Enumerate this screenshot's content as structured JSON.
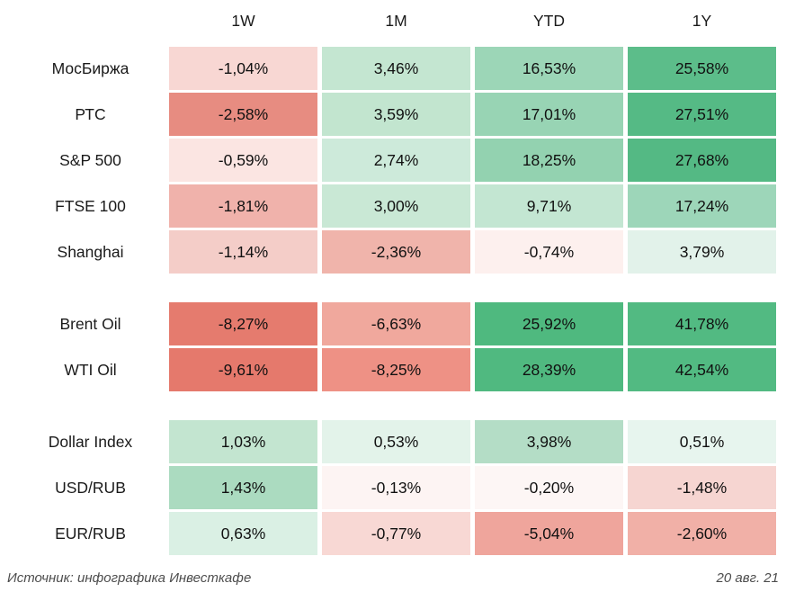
{
  "columns": [
    "1W",
    "1M",
    "YTD",
    "1Y"
  ],
  "table": {
    "groups": [
      {
        "rows": [
          {
            "label": "МосБиржа",
            "cells": [
              {
                "value": "-1,04%",
                "color": "#f8d7d3"
              },
              {
                "value": "3,46%",
                "color": "#c4e6d1"
              },
              {
                "value": "16,53%",
                "color": "#9cd6b7"
              },
              {
                "value": "25,58%",
                "color": "#5cbd8a"
              }
            ]
          },
          {
            "label": "РТС",
            "cells": [
              {
                "value": "-2,58%",
                "color": "#e78c81"
              },
              {
                "value": "3,59%",
                "color": "#c2e5cf"
              },
              {
                "value": "17,01%",
                "color": "#98d4b4"
              },
              {
                "value": "27,51%",
                "color": "#55ba85"
              }
            ]
          },
          {
            "label": "S&P 500",
            "cells": [
              {
                "value": "-0,59%",
                "color": "#fbe5e2"
              },
              {
                "value": "2,74%",
                "color": "#cdeada"
              },
              {
                "value": "18,25%",
                "color": "#93d2b0"
              },
              {
                "value": "27,68%",
                "color": "#54b984"
              }
            ]
          },
          {
            "label": "FTSE 100",
            "cells": [
              {
                "value": "-1,81%",
                "color": "#f0b2ab"
              },
              {
                "value": "3,00%",
                "color": "#c9e8d5"
              },
              {
                "value": "9,71%",
                "color": "#c3e6d2"
              },
              {
                "value": "17,24%",
                "color": "#9dd6b9"
              }
            ]
          },
          {
            "label": "Shanghai",
            "cells": [
              {
                "value": "-1,14%",
                "color": "#f4cdc8"
              },
              {
                "value": "-2,36%",
                "color": "#f0b4ab"
              },
              {
                "value": "-0,74%",
                "color": "#fdf0ee"
              },
              {
                "value": "3,79%",
                "color": "#e2f2ea"
              }
            ]
          }
        ]
      },
      {
        "rows": [
          {
            "label": "Brent Oil",
            "cells": [
              {
                "value": "-8,27%",
                "color": "#e57b6e"
              },
              {
                "value": "-6,63%",
                "color": "#f0a89d"
              },
              {
                "value": "25,92%",
                "color": "#4fb97f"
              },
              {
                "value": "41,78%",
                "color": "#52ba82"
              }
            ]
          },
          {
            "label": "WTI Oil",
            "cells": [
              {
                "value": "-9,61%",
                "color": "#e5796c"
              },
              {
                "value": "-8,25%",
                "color": "#ee9185"
              },
              {
                "value": "28,39%",
                "color": "#50b980"
              },
              {
                "value": "42,54%",
                "color": "#52ba82"
              }
            ]
          }
        ]
      },
      {
        "rows": [
          {
            "label": "Dollar Index",
            "cells": [
              {
                "value": "1,03%",
                "color": "#c3e5d0"
              },
              {
                "value": "0,53%",
                "color": "#e3f3ea"
              },
              {
                "value": "3,98%",
                "color": "#b4ddc6"
              },
              {
                "value": "0,51%",
                "color": "#e7f5ee"
              }
            ]
          },
          {
            "label": "USD/RUB",
            "cells": [
              {
                "value": "1,43%",
                "color": "#abdbc0"
              },
              {
                "value": "-0,13%",
                "color": "#fdf4f3"
              },
              {
                "value": "-0,20%",
                "color": "#fdf6f5"
              },
              {
                "value": "-1,48%",
                "color": "#f6d5d1"
              }
            ]
          },
          {
            "label": "EUR/RUB",
            "cells": [
              {
                "value": "0,63%",
                "color": "#daf0e4"
              },
              {
                "value": "-0,77%",
                "color": "#f8d8d4"
              },
              {
                "value": "-5,04%",
                "color": "#efa59c"
              },
              {
                "value": "-2,60%",
                "color": "#f1b0a7"
              }
            ]
          }
        ]
      }
    ]
  },
  "footer": {
    "source": "Источник: инфографика Инвесткафе",
    "date": "20 авг. 21"
  },
  "chart_data": {
    "type": "heatmap",
    "columns": [
      "1W",
      "1M",
      "YTD",
      "1Y"
    ],
    "rows": [
      "МосБиржа",
      "РТС",
      "S&P 500",
      "FTSE 100",
      "Shanghai",
      "Brent Oil",
      "WTI Oil",
      "Dollar Index",
      "USD/RUB",
      "EUR/RUB"
    ],
    "row_groups": [
      [
        "МосБиржа",
        "РТС",
        "S&P 500",
        "FTSE 100",
        "Shanghai"
      ],
      [
        "Brent Oil",
        "WTI Oil"
      ],
      [
        "Dollar Index",
        "USD/RUB",
        "EUR/RUB"
      ]
    ],
    "values_percent": [
      [
        -1.04,
        3.46,
        16.53,
        25.58
      ],
      [
        -2.58,
        3.59,
        17.01,
        27.51
      ],
      [
        -0.59,
        2.74,
        18.25,
        27.68
      ],
      [
        -1.81,
        3.0,
        9.71,
        17.24
      ],
      [
        -1.14,
        -2.36,
        -0.74,
        3.79
      ],
      [
        -8.27,
        -6.63,
        25.92,
        41.78
      ],
      [
        -9.61,
        -8.25,
        28.39,
        42.54
      ],
      [
        1.03,
        0.53,
        3.98,
        0.51
      ],
      [
        1.43,
        -0.13,
        -0.2,
        -1.48
      ],
      [
        0.63,
        -0.77,
        -5.04,
        -2.6
      ]
    ],
    "value_range": [
      -9.61,
      42.54
    ],
    "colorscale": {
      "negative": "#e5796c",
      "zero": "#ffffff",
      "positive": "#4fb97f"
    },
    "legend_position": "none",
    "grid": false,
    "title": "",
    "source": "Источник: инфографика Инвесткафе",
    "date": "20 авг. 21"
  }
}
